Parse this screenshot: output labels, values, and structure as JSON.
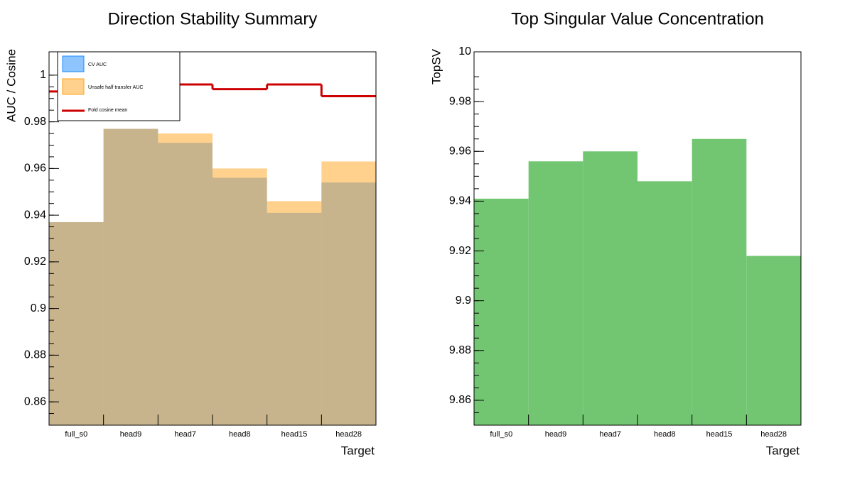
{
  "chart_data": [
    {
      "type": "bar",
      "title": "Direction Stability Summary",
      "x_label": "Target",
      "y_label": "AUC / Cosine",
      "categories": [
        "full_s0",
        "head9",
        "head7",
        "head8",
        "head15",
        "head28"
      ],
      "series": [
        {
          "name": "CV AUC",
          "color": "#1e8cff",
          "values": [
            0.937,
            0.977,
            0.971,
            0.956,
            0.941,
            0.954
          ]
        },
        {
          "name": "Unsafe half transfer AUC",
          "color": "#ffa31a",
          "values": [
            0.937,
            0.977,
            0.975,
            0.96,
            0.946,
            0.963
          ]
        },
        {
          "name": "Fold cosine mean",
          "color": "#cc0000",
          "type": "step",
          "values": [
            0.993,
            0.996,
            0.996,
            0.994,
            0.996,
            0.991
          ]
        }
      ],
      "ylim": [
        0.85,
        1.01
      ],
      "yticks": [
        0.86,
        0.88,
        0.9,
        0.92,
        0.94,
        0.96,
        0.98,
        1
      ],
      "grid": false,
      "legend": "top-left"
    },
    {
      "type": "bar",
      "title": "Top Singular Value Concentration",
      "x_label": "Target",
      "y_label": "TopSV",
      "categories": [
        "full_s0",
        "head9",
        "head7",
        "head8",
        "head15",
        "head28"
      ],
      "series": [
        {
          "name": "TopSV",
          "color": "#72c672",
          "values": [
            9.941,
            9.956,
            9.96,
            9.948,
            9.965,
            9.918
          ]
        }
      ],
      "ylim": [
        9.85,
        10
      ],
      "yticks": [
        9.86,
        9.88,
        9.9,
        9.92,
        9.94,
        9.96,
        9.98,
        10
      ],
      "grid": false,
      "legend": "none"
    }
  ]
}
